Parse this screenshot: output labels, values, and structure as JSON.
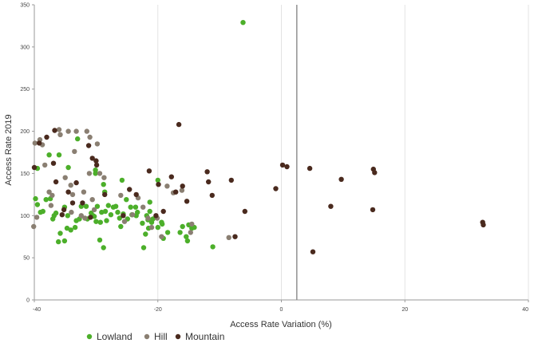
{
  "chart_data": {
    "type": "scatter",
    "title": "",
    "xlabel": "Access Rate Variation (%)",
    "ylabel": "Access Rate 2019",
    "xlim": [
      -40,
      40
    ],
    "ylim": [
      0,
      350
    ],
    "xticks": [
      -40,
      -20,
      0,
      20,
      40
    ],
    "yticks": [
      0,
      50,
      100,
      150,
      200,
      250,
      300,
      350
    ],
    "xtick_labels": [
      "-40",
      "-20",
      "0",
      "20",
      "40"
    ],
    "ytick_labels": [
      "0",
      "50",
      "100",
      "150",
      "200",
      "250",
      "300",
      "350"
    ],
    "grid": "vertical",
    "vertical_reference_line_x": 2.5,
    "legend_position": "bottom",
    "series": [
      {
        "name": "Lowland",
        "color": "#4caf2a",
        "points": [
          [
            -6.2,
            329
          ],
          [
            -39.5,
            156
          ],
          [
            -37.6,
            172
          ],
          [
            -38.1,
            119
          ],
          [
            -36.0,
            172
          ],
          [
            -35.1,
            110
          ],
          [
            -33.0,
            191
          ],
          [
            -34.5,
            157
          ],
          [
            -30.1,
            150
          ],
          [
            -30.1,
            154
          ],
          [
            -28.8,
            137
          ],
          [
            -28.6,
            128
          ],
          [
            -25.8,
            142
          ],
          [
            -23.3,
            104
          ],
          [
            -21.3,
            116
          ],
          [
            -20.0,
            142
          ],
          [
            -19.4,
            92
          ],
          [
            -19.3,
            90
          ],
          [
            -16.0,
            87
          ],
          [
            -15.4,
            75
          ],
          [
            -15.2,
            70
          ],
          [
            -15.0,
            89
          ],
          [
            -14.5,
            85
          ],
          [
            -14.1,
            86
          ],
          [
            -11.1,
            63
          ],
          [
            -39.8,
            120
          ],
          [
            -39.5,
            113
          ],
          [
            -38.6,
            105
          ],
          [
            -37.4,
            120
          ],
          [
            -36.8,
            100
          ],
          [
            -36.5,
            103
          ],
          [
            -36.1,
            69
          ],
          [
            -35.8,
            79
          ],
          [
            -35.1,
            70
          ],
          [
            -34.6,
            100
          ],
          [
            -34.1,
            83
          ],
          [
            -33.4,
            86
          ],
          [
            -32.7,
            96
          ],
          [
            -32.4,
            111
          ],
          [
            -31.4,
            96
          ],
          [
            -31.6,
            111
          ],
          [
            -30.8,
            103
          ],
          [
            -30.3,
            99
          ],
          [
            -30.0,
            93
          ],
          [
            -29.8,
            111
          ],
          [
            -29.4,
            71
          ],
          [
            -29.3,
            92
          ],
          [
            -29.1,
            104
          ],
          [
            -28.8,
            62
          ],
          [
            -28.5,
            105
          ],
          [
            -28.3,
            94
          ],
          [
            -27.6,
            101
          ],
          [
            -27.2,
            110
          ],
          [
            -26.8,
            111
          ],
          [
            -26.2,
            97
          ],
          [
            -26.0,
            87
          ],
          [
            -25.6,
            102
          ],
          [
            -25.1,
            119
          ],
          [
            -24.4,
            110
          ],
          [
            -24.2,
            101
          ],
          [
            -23.6,
            110
          ],
          [
            -23.5,
            100
          ],
          [
            -22.5,
            91
          ],
          [
            -22.0,
            78
          ],
          [
            -21.5,
            85
          ],
          [
            -21.0,
            92
          ],
          [
            -21.6,
            95
          ],
          [
            -21.3,
            105
          ],
          [
            -21.8,
            100
          ],
          [
            -22.3,
            62
          ],
          [
            -20.8,
            96
          ],
          [
            -20.0,
            86
          ],
          [
            -19.1,
            73
          ],
          [
            -18.4,
            80
          ],
          [
            -16.4,
            80
          ],
          [
            -39.0,
            104
          ],
          [
            -37.0,
            96
          ],
          [
            -34.7,
            85
          ],
          [
            -33.2,
            94
          ],
          [
            -30.5,
            100
          ],
          [
            -28.0,
            112
          ],
          [
            -26.5,
            104
          ],
          [
            -24.9,
            96
          ]
        ]
      },
      {
        "name": "Hill",
        "color": "#8a7f72",
        "points": [
          [
            -40.1,
            87
          ],
          [
            -39.9,
            186
          ],
          [
            -39.1,
            190
          ],
          [
            -38.7,
            184
          ],
          [
            -38.3,
            160
          ],
          [
            -37.6,
            128
          ],
          [
            -37.1,
            124
          ],
          [
            -35.8,
            196
          ],
          [
            -35.0,
            145
          ],
          [
            -34.0,
            104
          ],
          [
            -34.1,
            136
          ],
          [
            -33.5,
            176
          ],
          [
            -33.2,
            200
          ],
          [
            -32.4,
            100
          ],
          [
            -32.0,
            128
          ],
          [
            -31.8,
            97
          ],
          [
            -31.1,
            150
          ],
          [
            -31.0,
            193
          ],
          [
            -30.3,
            107
          ],
          [
            -29.8,
            185
          ],
          [
            -29.4,
            150
          ],
          [
            -28.7,
            145
          ],
          [
            -26.0,
            124
          ],
          [
            -25.4,
            93
          ],
          [
            -24.1,
            101
          ],
          [
            -23.2,
            121
          ],
          [
            -22.4,
            110
          ],
          [
            -21.6,
            97
          ],
          [
            -21.0,
            86
          ],
          [
            -20.1,
            97
          ],
          [
            -19.4,
            75
          ],
          [
            -18.5,
            135
          ],
          [
            -17.5,
            127
          ],
          [
            -16.1,
            130
          ],
          [
            -14.5,
            90
          ],
          [
            -14.7,
            80
          ],
          [
            -8.5,
            74
          ],
          [
            -37.3,
            112
          ],
          [
            -36.0,
            202
          ],
          [
            -34.5,
            200
          ],
          [
            -33.8,
            125
          ],
          [
            -31.5,
            200
          ],
          [
            -39.6,
            98
          ],
          [
            -30.6,
            119
          ]
        ]
      },
      {
        "name": "Mountain",
        "color": "#4a2a1e",
        "points": [
          [
            -40.0,
            157
          ],
          [
            -39.2,
            186
          ],
          [
            -38.0,
            193
          ],
          [
            -36.9,
            162
          ],
          [
            -36.7,
            201
          ],
          [
            -36.5,
            140
          ],
          [
            -35.5,
            101
          ],
          [
            -34.5,
            128
          ],
          [
            -33.2,
            139
          ],
          [
            -32.2,
            115
          ],
          [
            -31.2,
            183
          ],
          [
            -30.6,
            168
          ],
          [
            -30.0,
            165
          ],
          [
            -29.9,
            160
          ],
          [
            -28.6,
            125
          ],
          [
            -24.6,
            131
          ],
          [
            -23.5,
            125
          ],
          [
            -21.4,
            153
          ],
          [
            -19.9,
            137
          ],
          [
            -19.1,
            105
          ],
          [
            -17.8,
            146
          ],
          [
            -17.1,
            128
          ],
          [
            -16.6,
            208
          ],
          [
            -15.3,
            117
          ],
          [
            -12.0,
            152
          ],
          [
            -11.8,
            140
          ],
          [
            -11.2,
            124
          ],
          [
            -8.1,
            142
          ],
          [
            -7.5,
            75
          ],
          [
            -5.9,
            105
          ],
          [
            -0.9,
            132
          ],
          [
            0.2,
            160
          ],
          [
            0.9,
            158
          ],
          [
            4.6,
            156
          ],
          [
            5.1,
            57
          ],
          [
            8.0,
            111
          ],
          [
            9.7,
            143
          ],
          [
            14.8,
            107
          ],
          [
            14.9,
            155
          ],
          [
            15.1,
            151
          ],
          [
            32.6,
            92
          ],
          [
            32.7,
            89
          ],
          [
            -35.2,
            107
          ],
          [
            -33.8,
            115
          ],
          [
            -30.9,
            98
          ],
          [
            -25.6,
            100
          ],
          [
            -20.3,
            100
          ],
          [
            -16.0,
            135
          ]
        ]
      }
    ]
  }
}
